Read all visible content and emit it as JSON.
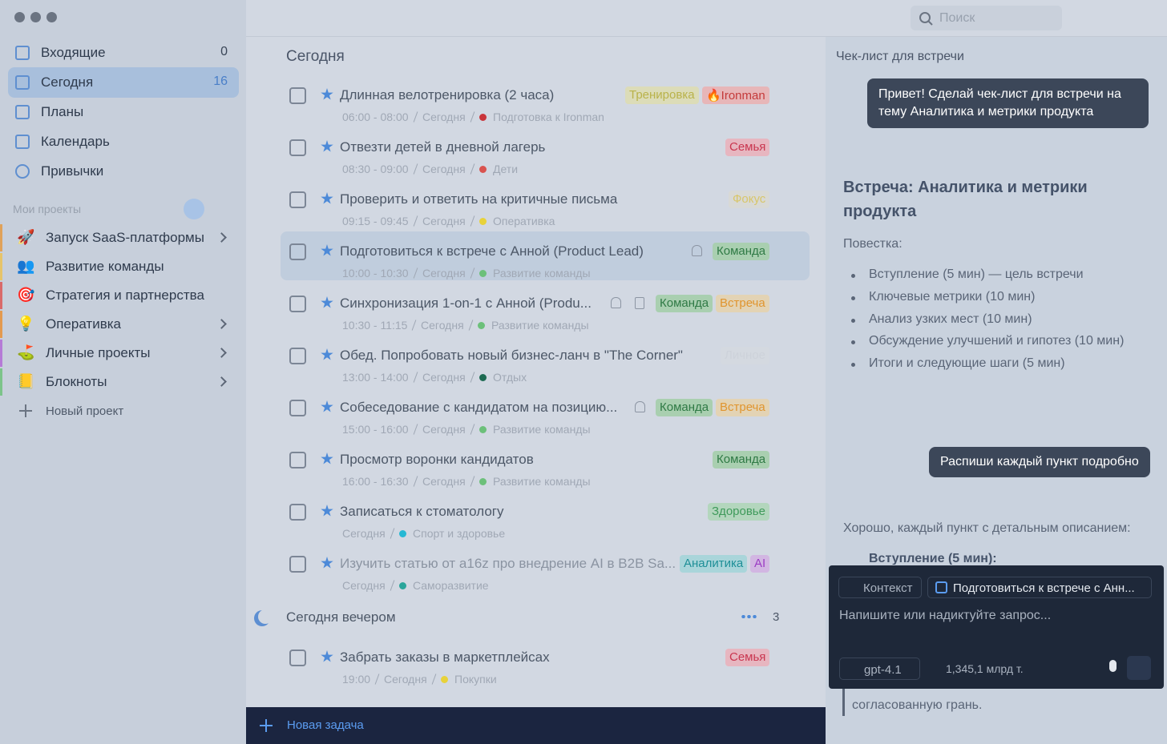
{
  "sidebar": {
    "nav": [
      {
        "label": "Входящие",
        "count": 0
      },
      {
        "label": "Сегодня",
        "count": 16
      },
      {
        "label": "Планы"
      },
      {
        "label": "Календарь"
      },
      {
        "label": "Привычки"
      }
    ],
    "projects_title": "Мои проекты",
    "projects": [
      {
        "icon": "🚀",
        "label": "Запуск SaaS-платформы",
        "color": "#e0a25a"
      },
      {
        "icon": "👥",
        "label": "Развитие команды",
        "color": "#e6c46a"
      },
      {
        "icon": "🎯",
        "label": "Стратегия и партнерства",
        "color": "#d96a6a"
      },
      {
        "icon": "💡",
        "label": "Оперативка",
        "color": "#e39a4f"
      },
      {
        "icon": "⛳",
        "label": "Личные проекты",
        "color": "#b57bd6"
      },
      {
        "icon": "📒",
        "label": "Блокноты",
        "color": "#7cc48a"
      }
    ],
    "new_project": "Новый проект"
  },
  "toolbar": {
    "search_placeholder": "Поиск"
  },
  "tasks": {
    "title": "Сегодня",
    "items": [
      {
        "title": "Длинная велотренировка (2 часа)",
        "time": "06:00 - 08:00",
        "date": "Сегодня",
        "project": "Подготовка к Ironman",
        "project_color": "#c9353b",
        "tags": [
          {
            "text": "Тренировка",
            "color": "#b9b24a",
            "bg": "#dcdcb8"
          },
          {
            "text": "🔥Ironman",
            "color": "#c43a3a",
            "bg": "#e7b6b8"
          }
        ]
      },
      {
        "title": "Отвезти детей в дневной лагерь",
        "time": "08:30 - 09:00",
        "date": "Сегодня",
        "project": "Дети",
        "project_color": "#d9534f",
        "tags": [
          {
            "text": "Семья",
            "color": "#c9364f",
            "bg": "#e7b6c0"
          }
        ]
      },
      {
        "title": "Проверить и ответить на критичные письма",
        "time": "09:15 - 09:45",
        "date": "Сегодня",
        "project": "Оперативка",
        "project_color": "#e8d23a",
        "tags": [
          {
            "text": "Фокус",
            "color": "#d8c66a",
            "bg": "#d8d9d6"
          }
        ]
      },
      {
        "title": "Подготовиться к встрече с Анной (Product Lead)",
        "time": "10:00 - 10:30",
        "date": "Сегодня",
        "project": "Развитие команды",
        "project_color": "#6cc07a",
        "tags": [
          {
            "text": "Команда",
            "color": "#2f7a45",
            "bg": "#a9cfb0"
          }
        ],
        "bell": true,
        "selected": true
      },
      {
        "title": "Синхронизация 1-on-1 с Анной (Produ...",
        "time": "10:30 - 11:15",
        "date": "Сегодня",
        "project": "Развитие команды",
        "project_color": "#6cc07a",
        "tags": [
          {
            "text": "Команда",
            "color": "#2f7a45",
            "bg": "#a9cfb0"
          },
          {
            "text": "Встреча",
            "color": "#e0952f",
            "bg": "#e3d3b4"
          }
        ],
        "bell": true,
        "note": true
      },
      {
        "title": "Обед. Попробовать новый бизнес-ланч в \"The Corner\"",
        "time": "13:00 - 14:00",
        "date": "Сегодня",
        "project": "Отдых",
        "project_color": "#1d6a52",
        "tags": [
          {
            "text": "Личное",
            "color": "#cdd2da",
            "bg": "#d4d9e0"
          }
        ]
      },
      {
        "title": "Собеседование с кандидатом на позицию...",
        "time": "15:00 - 16:00",
        "date": "Сегодня",
        "project": "Развитие команды",
        "project_color": "#6cc07a",
        "tags": [
          {
            "text": "Команда",
            "color": "#2f7a45",
            "bg": "#a9cfb0"
          },
          {
            "text": "Встреча",
            "color": "#e0952f",
            "bg": "#e3d3b4"
          }
        ],
        "bell": true
      },
      {
        "title": "Просмотр воронки кандидатов",
        "time": "16:00 - 16:30",
        "date": "Сегодня",
        "project": "Развитие команды",
        "project_color": "#6cc07a",
        "tags": [
          {
            "text": "Команда",
            "color": "#2f7a45",
            "bg": "#a9cfb0"
          }
        ]
      },
      {
        "title": "Записаться к стоматологу",
        "date": "Сегодня",
        "project": "Спорт и здоровье",
        "project_color": "#25b8d4",
        "tags": [
          {
            "text": "Здоровье",
            "color": "#3f9a5b",
            "bg": "#b3d6bd"
          }
        ]
      },
      {
        "title": "Изучить статью от a16z про внедрение AI в B2B Sa...",
        "date": "Сегодня",
        "project": "Саморазвитие",
        "project_color": "#2aa59b",
        "tags": [
          {
            "text": "Аналитика",
            "color": "#1e8f97",
            "bg": "#a9d5da"
          },
          {
            "text": "AI",
            "color": "#9b3cc4",
            "bg": "#d2b6e2"
          }
        ],
        "faded": true
      }
    ],
    "evening_title": "Сегодня вечером",
    "evening_count": 3,
    "evening_items": [
      {
        "title": "Забрать заказы в маркетплейсах",
        "time": "19:00",
        "date": "Сегодня",
        "project": "Покупки",
        "project_color": "#e8d23a",
        "tags": [
          {
            "text": "Семья",
            "color": "#c9364f",
            "bg": "#e7b6c0"
          }
        ]
      }
    ],
    "new_task": "Новая задача"
  },
  "chat": {
    "title": "Чек-лист для встречи",
    "user_message_1": "Привет! Сделай чек-лист для встречи на тему Аналитика и метрики продукта",
    "heading": "Встреча: Аналитика и метрики продукта",
    "agenda_label": "Повестка:",
    "agenda": [
      "Вступление (5 мин) — цель встречи",
      "Ключевые метрики (10 мин)",
      "Анализ узких мест (10 мин)",
      "Обсуждение улучшений и гипотез (10 мин)",
      "Итоги и следующие шаги (5 мин)"
    ],
    "user_message_2": "Распиши каждый пункт подробно",
    "reply_intro": "Хорошо, каждый пункт с детальным описанием:",
    "reply_item": "Вступление (5 мин):",
    "quote_tail": "согласованную грань.",
    "input": {
      "context": "Контекст",
      "attached_task": "Подготовиться к встрече с Анн...",
      "placeholder": "Напишите или надиктуйте запрос...",
      "model": "gpt-4.1",
      "tokens": "1,345,1 млрд т."
    }
  }
}
